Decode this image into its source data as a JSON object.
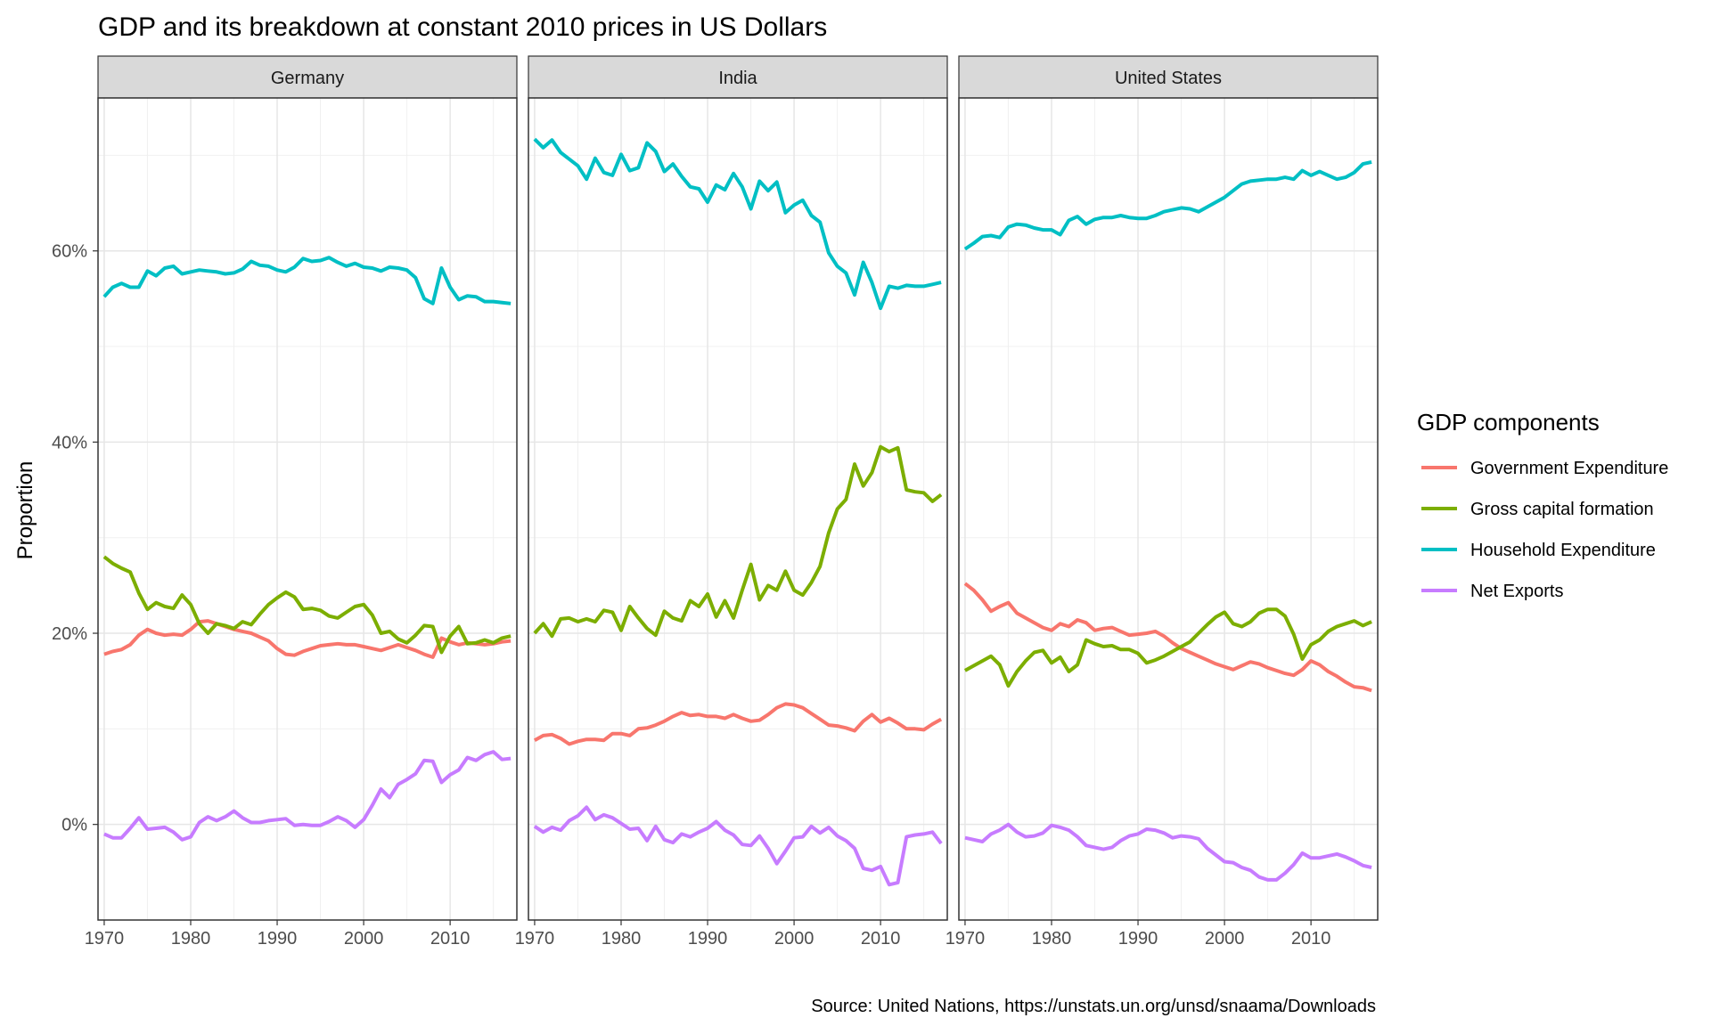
{
  "title": "GDP and its breakdown at constant 2010 prices in US Dollars",
  "caption": "Source: United Nations, https://unstats.un.org/unsd/snaama/Downloads",
  "legend": {
    "title": "GDP components",
    "position": "right",
    "items": [
      {
        "label": "Government Expenditure",
        "color": "#F8766D"
      },
      {
        "label": "Gross capital formation",
        "color": "#7CAE00"
      },
      {
        "label": "Household Expenditure",
        "color": "#00BFC4"
      },
      {
        "label": "Net Exports",
        "color": "#C77CFF"
      }
    ]
  },
  "chart_data": {
    "type": "line",
    "facet_by": "country",
    "x": [
      1970,
      1971,
      1972,
      1973,
      1974,
      1975,
      1976,
      1977,
      1978,
      1979,
      1980,
      1981,
      1982,
      1983,
      1984,
      1985,
      1986,
      1987,
      1988,
      1989,
      1990,
      1991,
      1992,
      1993,
      1994,
      1995,
      1996,
      1997,
      1998,
      1999,
      2000,
      2001,
      2002,
      2003,
      2004,
      2005,
      2006,
      2007,
      2008,
      2009,
      2010,
      2011,
      2012,
      2013,
      2014,
      2015,
      2016,
      2017
    ],
    "xticks": [
      1970,
      1980,
      1990,
      2000,
      2010
    ],
    "xtick_labels": [
      "1970",
      "1980",
      "1990",
      "2000",
      "2010"
    ],
    "xlim": [
      1970,
      2017
    ],
    "ylabel": "Proportion",
    "xlabel": "",
    "ylim": [
      -0.1,
      0.76
    ],
    "yticks": [
      0,
      0.2,
      0.4,
      0.6
    ],
    "ytick_labels": [
      "0%",
      "20%",
      "40%",
      "60%"
    ],
    "grid": true,
    "panels": [
      {
        "name": "Germany",
        "series": [
          {
            "name": "Government Expenditure",
            "color": "#F8766D",
            "values": [
              0.178,
              0.181,
              0.183,
              0.188,
              0.198,
              0.204,
              0.2,
              0.198,
              0.199,
              0.198,
              0.204,
              0.212,
              0.213,
              0.21,
              0.207,
              0.204,
              0.202,
              0.2,
              0.196,
              0.192,
              0.184,
              0.178,
              0.177,
              0.181,
              0.184,
              0.187,
              0.188,
              0.189,
              0.188,
              0.188,
              0.186,
              0.184,
              0.182,
              0.185,
              0.188,
              0.185,
              0.182,
              0.178,
              0.175,
              0.195,
              0.191,
              0.188,
              0.19,
              0.189,
              0.188,
              0.189,
              0.191,
              0.192
            ]
          },
          {
            "name": "Gross capital formation",
            "color": "#7CAE00",
            "values": [
              0.28,
              0.273,
              0.268,
              0.264,
              0.242,
              0.225,
              0.232,
              0.228,
              0.226,
              0.24,
              0.23,
              0.21,
              0.2,
              0.21,
              0.208,
              0.205,
              0.212,
              0.209,
              0.22,
              0.23,
              0.237,
              0.243,
              0.238,
              0.225,
              0.226,
              0.224,
              0.218,
              0.216,
              0.222,
              0.228,
              0.23,
              0.219,
              0.2,
              0.202,
              0.194,
              0.19,
              0.198,
              0.208,
              0.207,
              0.18,
              0.197,
              0.207,
              0.189,
              0.19,
              0.193,
              0.19,
              0.195,
              0.197
            ]
          },
          {
            "name": "Household Expenditure",
            "color": "#00BFC4",
            "values": [
              0.552,
              0.562,
              0.566,
              0.562,
              0.562,
              0.579,
              0.574,
              0.582,
              0.584,
              0.576,
              0.578,
              0.58,
              0.579,
              0.578,
              0.576,
              0.577,
              0.581,
              0.589,
              0.585,
              0.584,
              0.58,
              0.578,
              0.583,
              0.592,
              0.589,
              0.59,
              0.593,
              0.588,
              0.584,
              0.587,
              0.583,
              0.582,
              0.579,
              0.583,
              0.582,
              0.58,
              0.572,
              0.55,
              0.545,
              0.582,
              0.562,
              0.549,
              0.553,
              0.552,
              0.547,
              0.547,
              0.546,
              0.545
            ]
          },
          {
            "name": "Net Exports",
            "color": "#C77CFF",
            "values": [
              -0.01,
              -0.014,
              -0.014,
              -0.004,
              0.007,
              -0.005,
              -0.004,
              -0.003,
              -0.008,
              -0.016,
              -0.013,
              0.002,
              0.008,
              0.004,
              0.008,
              0.014,
              0.007,
              0.002,
              0.002,
              0.004,
              0.005,
              0.006,
              -0.001,
              0.0,
              -0.001,
              -0.001,
              0.003,
              0.008,
              0.004,
              -0.003,
              0.005,
              0.02,
              0.037,
              0.028,
              0.042,
              0.047,
              0.053,
              0.067,
              0.066,
              0.044,
              0.052,
              0.057,
              0.07,
              0.067,
              0.073,
              0.076,
              0.068,
              0.069
            ]
          }
        ]
      },
      {
        "name": "India",
        "series": [
          {
            "name": "Government Expenditure",
            "color": "#F8766D",
            "values": [
              0.088,
              0.093,
              0.094,
              0.09,
              0.084,
              0.087,
              0.089,
              0.089,
              0.088,
              0.095,
              0.095,
              0.093,
              0.1,
              0.101,
              0.104,
              0.108,
              0.113,
              0.117,
              0.114,
              0.115,
              0.113,
              0.113,
              0.111,
              0.115,
              0.111,
              0.108,
              0.109,
              0.115,
              0.122,
              0.126,
              0.125,
              0.122,
              0.116,
              0.11,
              0.104,
              0.103,
              0.101,
              0.098,
              0.108,
              0.115,
              0.107,
              0.111,
              0.106,
              0.1,
              0.1,
              0.099,
              0.105,
              0.11
            ]
          },
          {
            "name": "Gross capital formation",
            "color": "#7CAE00",
            "values": [
              0.2,
              0.21,
              0.197,
              0.215,
              0.216,
              0.212,
              0.215,
              0.212,
              0.224,
              0.222,
              0.203,
              0.228,
              0.216,
              0.205,
              0.198,
              0.223,
              0.216,
              0.213,
              0.234,
              0.228,
              0.241,
              0.217,
              0.234,
              0.216,
              0.245,
              0.272,
              0.235,
              0.25,
              0.245,
              0.265,
              0.245,
              0.24,
              0.253,
              0.27,
              0.305,
              0.33,
              0.34,
              0.377,
              0.354,
              0.368,
              0.395,
              0.39,
              0.394,
              0.35,
              0.348,
              0.347,
              0.338,
              0.345
            ]
          },
          {
            "name": "Household Expenditure",
            "color": "#00BFC4",
            "values": [
              0.717,
              0.708,
              0.716,
              0.703,
              0.696,
              0.689,
              0.675,
              0.697,
              0.682,
              0.679,
              0.701,
              0.684,
              0.687,
              0.713,
              0.704,
              0.683,
              0.691,
              0.678,
              0.667,
              0.665,
              0.651,
              0.669,
              0.664,
              0.681,
              0.667,
              0.644,
              0.673,
              0.663,
              0.672,
              0.64,
              0.648,
              0.653,
              0.637,
              0.63,
              0.598,
              0.584,
              0.577,
              0.554,
              0.588,
              0.567,
              0.54,
              0.563,
              0.561,
              0.564,
              0.563,
              0.563,
              0.565,
              0.567
            ]
          },
          {
            "name": "Net Exports",
            "color": "#C77CFF",
            "values": [
              -0.002,
              -0.008,
              -0.003,
              -0.006,
              0.004,
              0.009,
              0.018,
              0.005,
              0.01,
              0.007,
              0.001,
              -0.005,
              -0.004,
              -0.017,
              -0.002,
              -0.016,
              -0.019,
              -0.01,
              -0.013,
              -0.008,
              -0.004,
              0.003,
              -0.006,
              -0.011,
              -0.021,
              -0.022,
              -0.012,
              -0.025,
              -0.041,
              -0.028,
              -0.014,
              -0.013,
              -0.002,
              -0.009,
              -0.003,
              -0.012,
              -0.017,
              -0.025,
              -0.046,
              -0.048,
              -0.044,
              -0.063,
              -0.061,
              -0.013,
              -0.011,
              -0.01,
              -0.008,
              -0.02
            ]
          }
        ]
      },
      {
        "name": "United States",
        "series": [
          {
            "name": "Government Expenditure",
            "color": "#F8766D",
            "values": [
              0.252,
              0.245,
              0.235,
              0.223,
              0.228,
              0.232,
              0.221,
              0.216,
              0.211,
              0.206,
              0.203,
              0.21,
              0.207,
              0.214,
              0.211,
              0.203,
              0.205,
              0.206,
              0.202,
              0.198,
              0.199,
              0.2,
              0.202,
              0.197,
              0.19,
              0.184,
              0.18,
              0.176,
              0.172,
              0.168,
              0.165,
              0.162,
              0.166,
              0.17,
              0.168,
              0.164,
              0.161,
              0.158,
              0.156,
              0.162,
              0.171,
              0.167,
              0.16,
              0.155,
              0.149,
              0.144,
              0.143,
              0.14
            ]
          },
          {
            "name": "Gross capital formation",
            "color": "#7CAE00",
            "values": [
              0.161,
              0.166,
              0.171,
              0.176,
              0.167,
              0.145,
              0.16,
              0.171,
              0.18,
              0.182,
              0.169,
              0.175,
              0.16,
              0.167,
              0.193,
              0.189,
              0.186,
              0.187,
              0.183,
              0.183,
              0.179,
              0.169,
              0.172,
              0.176,
              0.181,
              0.186,
              0.191,
              0.2,
              0.209,
              0.217,
              0.222,
              0.21,
              0.207,
              0.212,
              0.221,
              0.225,
              0.225,
              0.218,
              0.199,
              0.173,
              0.188,
              0.193,
              0.202,
              0.207,
              0.21,
              0.213,
              0.208,
              0.212
            ]
          },
          {
            "name": "Household Expenditure",
            "color": "#00BFC4",
            "values": [
              0.602,
              0.608,
              0.615,
              0.616,
              0.614,
              0.625,
              0.628,
              0.627,
              0.624,
              0.622,
              0.622,
              0.617,
              0.632,
              0.636,
              0.628,
              0.633,
              0.635,
              0.635,
              0.637,
              0.635,
              0.634,
              0.634,
              0.637,
              0.641,
              0.643,
              0.645,
              0.644,
              0.641,
              0.646,
              0.651,
              0.656,
              0.663,
              0.67,
              0.673,
              0.674,
              0.675,
              0.675,
              0.677,
              0.675,
              0.684,
              0.679,
              0.683,
              0.679,
              0.675,
              0.677,
              0.682,
              0.691,
              0.693
            ]
          },
          {
            "name": "Net Exports",
            "color": "#C77CFF",
            "values": [
              -0.014,
              -0.016,
              -0.018,
              -0.01,
              -0.006,
              0.0,
              -0.008,
              -0.013,
              -0.012,
              -0.009,
              -0.001,
              -0.003,
              -0.006,
              -0.013,
              -0.022,
              -0.024,
              -0.026,
              -0.024,
              -0.017,
              -0.012,
              -0.01,
              -0.005,
              -0.006,
              -0.009,
              -0.014,
              -0.012,
              -0.013,
              -0.015,
              -0.025,
              -0.032,
              -0.039,
              -0.04,
              -0.045,
              -0.048,
              -0.055,
              -0.058,
              -0.058,
              -0.051,
              -0.042,
              -0.03,
              -0.035,
              -0.035,
              -0.033,
              -0.031,
              -0.034,
              -0.038,
              -0.043,
              -0.045
            ]
          }
        ]
      }
    ]
  }
}
